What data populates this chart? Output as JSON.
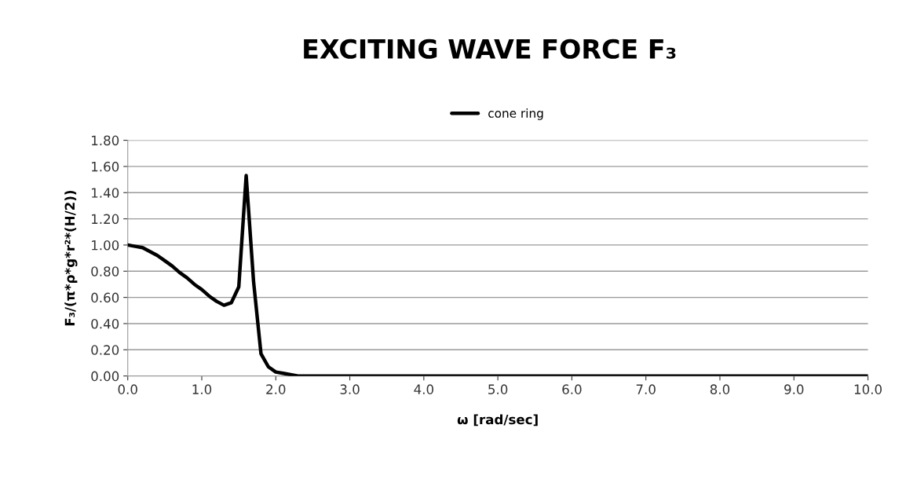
{
  "chart_data": {
    "type": "line",
    "title": "EXCITING WAVE FORCE F₃",
    "xlabel": "ω [rad/sec]",
    "ylabel": "F₃/(π*ρ*g*r²*(H/2))",
    "x": [
      0,
      0.1,
      0.2,
      0.3,
      0.4,
      0.5,
      0.6,
      0.7,
      0.8,
      0.9,
      1.0,
      1.1,
      1.2,
      1.3,
      1.4,
      1.5,
      1.6,
      1.7,
      1.8,
      1.9,
      2.0,
      2.1,
      2.2,
      2.3,
      3,
      4,
      5,
      6,
      7,
      8,
      9,
      10
    ],
    "series": [
      {
        "name": "cone ring",
        "color": "#000000",
        "values": [
          1.0,
          0.99,
          0.98,
          0.95,
          0.92,
          0.88,
          0.84,
          0.79,
          0.75,
          0.7,
          0.66,
          0.61,
          0.57,
          0.54,
          0.56,
          0.68,
          1.53,
          0.72,
          0.17,
          0.07,
          0.03,
          0.02,
          0.01,
          0,
          0,
          0,
          0,
          0,
          0,
          0,
          0,
          0
        ]
      }
    ],
    "xlim": [
      0,
      10
    ],
    "xticks": [
      {
        "value": 0,
        "label": "0.0"
      },
      {
        "value": 1,
        "label": "1.0"
      },
      {
        "value": 2,
        "label": "2.0"
      },
      {
        "value": 3,
        "label": "3.0"
      },
      {
        "value": 4,
        "label": "4.0"
      },
      {
        "value": 5,
        "label": "5.0"
      },
      {
        "value": 6,
        "label": "6.0"
      },
      {
        "value": 7,
        "label": "7.0"
      },
      {
        "value": 8,
        "label": "8.0"
      },
      {
        "value": 9,
        "label": "9.0"
      },
      {
        "value": 10,
        "label": "10.0"
      }
    ],
    "ylim": [
      0,
      1.8
    ],
    "yticks": [
      {
        "value": 0,
        "label": "0.00"
      },
      {
        "value": 0.2,
        "label": "0.20"
      },
      {
        "value": 0.4,
        "label": "0.40"
      },
      {
        "value": 0.6,
        "label": "0.60"
      },
      {
        "value": 0.8,
        "label": "0.80"
      },
      {
        "value": 1.0,
        "label": "1.00"
      },
      {
        "value": 1.2,
        "label": "1.20"
      },
      {
        "value": 1.4,
        "label": "1.40"
      },
      {
        "value": 1.6,
        "label": "1.60"
      },
      {
        "value": 1.8,
        "label": "1.80"
      }
    ],
    "grid": "y",
    "legend": "top",
    "marker": "none",
    "line_style": "solid"
  }
}
